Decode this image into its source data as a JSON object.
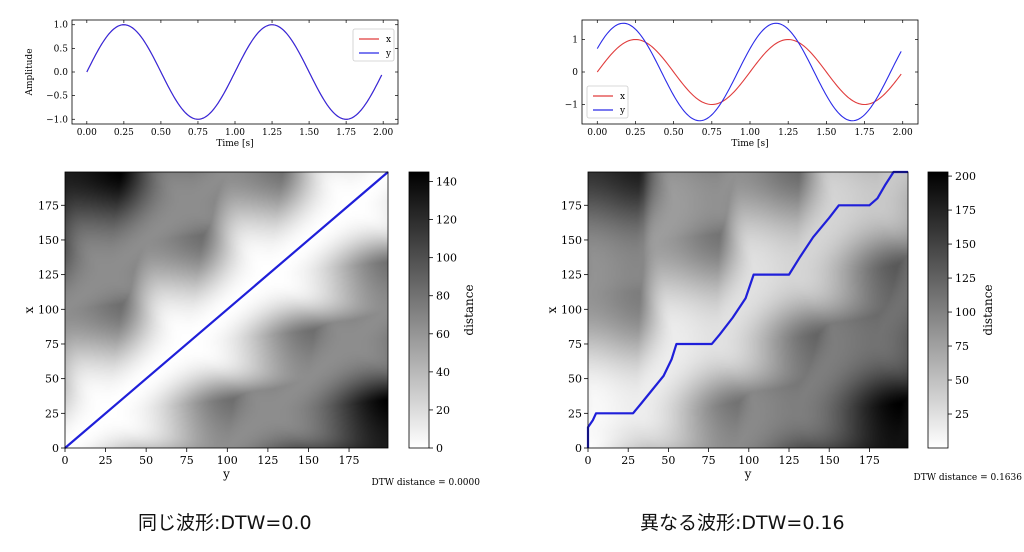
{
  "chart_data": [
    {
      "id": "same-line",
      "type": "line",
      "xlabel": "Time [s]",
      "ylabel": "Amplitude",
      "xlim": [
        -0.1,
        2.1
      ],
      "ylim": [
        -1.1,
        1.1
      ],
      "x_ticks": [
        0.0,
        0.25,
        0.5,
        0.75,
        1.0,
        1.25,
        1.5,
        1.75,
        2.0
      ],
      "x_tick_labels": [
        "0.00",
        "0.25",
        "0.50",
        "0.75",
        "1.00",
        "1.25",
        "1.50",
        "1.75",
        "2.00"
      ],
      "y_ticks": [
        -1.0,
        -0.5,
        0.0,
        0.5,
        1.0
      ],
      "y_tick_labels": [
        "−1.0",
        "−0.5",
        "0.0",
        "0.5",
        "1.0"
      ],
      "legend_position": "top-right",
      "series": [
        {
          "name": "x",
          "color": "#e03c3c",
          "amplitude": 1.0,
          "phase": 0.0,
          "frequency": 1.0,
          "t_start": 0.0,
          "t_end": 1.99
        },
        {
          "name": "y",
          "color": "#2b2be8",
          "amplitude": 1.0,
          "phase": 0.0,
          "frequency": 1.0,
          "t_start": 0.0,
          "t_end": 1.99
        }
      ]
    },
    {
      "id": "diff-line",
      "type": "line",
      "xlabel": "Time [s]",
      "ylabel": "",
      "xlim": [
        -0.1,
        2.1
      ],
      "ylim": [
        -1.6,
        1.6
      ],
      "x_ticks": [
        0.0,
        0.25,
        0.5,
        0.75,
        1.0,
        1.25,
        1.5,
        1.75,
        2.0
      ],
      "x_tick_labels": [
        "0.00",
        "0.25",
        "0.50",
        "0.75",
        "1.00",
        "1.25",
        "1.50",
        "1.75",
        "2.00"
      ],
      "y_ticks": [
        -1,
        0,
        1
      ],
      "y_tick_labels": [
        "−1",
        "0",
        "1"
      ],
      "legend_position": "bottom-left",
      "series": [
        {
          "name": "x",
          "color": "#e03c3c",
          "amplitude": 1.0,
          "phase": 0.0,
          "frequency": 1.0,
          "t_start": 0.0,
          "t_end": 1.99
        },
        {
          "name": "y",
          "color": "#2b2be8",
          "amplitude": 1.5,
          "phase": 0.5,
          "frequency": 1.0,
          "t_start": 0.0,
          "t_end": 1.99
        }
      ]
    },
    {
      "id": "same-heat",
      "type": "heatmap",
      "xlabel": "y",
      "ylabel": "x",
      "colorbar_label": "distance",
      "range": [
        0,
        199
      ],
      "x_ticks": [
        0,
        25,
        50,
        75,
        100,
        125,
        150,
        175
      ],
      "y_ticks": [
        0,
        25,
        50,
        75,
        100,
        125,
        150,
        175
      ],
      "colorbar_ticks": [
        0,
        20,
        40,
        60,
        80,
        100,
        120,
        140
      ],
      "colorbar_range": [
        0,
        145
      ],
      "note": "DTW distance = 0.0000",
      "path": [
        [
          0,
          0
        ],
        [
          199,
          199
        ]
      ]
    },
    {
      "id": "diff-heat",
      "type": "heatmap",
      "xlabel": "y",
      "ylabel": "x",
      "colorbar_label": "distance",
      "range": [
        0,
        199
      ],
      "x_ticks": [
        0,
        25,
        50,
        75,
        100,
        125,
        150,
        175
      ],
      "y_ticks": [
        0,
        25,
        50,
        75,
        100,
        125,
        150,
        175
      ],
      "colorbar_ticks": [
        25,
        50,
        75,
        100,
        125,
        150,
        175,
        200
      ],
      "colorbar_range": [
        0,
        203
      ],
      "note": "DTW distance = 0.1636",
      "path": [
        [
          0,
          0
        ],
        [
          0,
          15
        ],
        [
          3,
          20
        ],
        [
          5,
          25
        ],
        [
          28,
          25
        ],
        [
          33,
          32
        ],
        [
          40,
          42
        ],
        [
          47,
          52
        ],
        [
          52,
          64
        ],
        [
          55,
          75
        ],
        [
          77,
          75
        ],
        [
          82,
          82
        ],
        [
          90,
          94
        ],
        [
          98,
          108
        ],
        [
          103,
          125
        ],
        [
          125,
          125
        ],
        [
          132,
          138
        ],
        [
          140,
          152
        ],
        [
          150,
          166
        ],
        [
          156,
          175
        ],
        [
          175,
          175
        ],
        [
          180,
          180
        ],
        [
          185,
          190
        ],
        [
          190,
          199
        ],
        [
          199,
          199
        ]
      ]
    }
  ],
  "captions": {
    "left": "同じ波形:DTW=0.0",
    "right": "異なる波形:DTW=0.16"
  }
}
